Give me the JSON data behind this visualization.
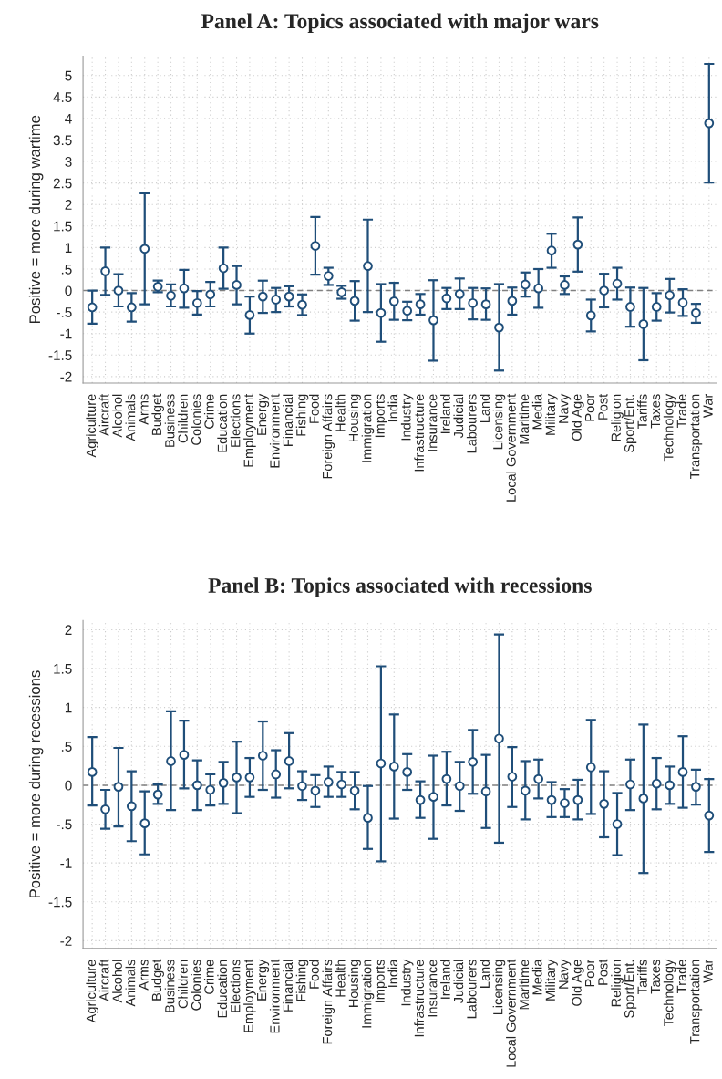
{
  "chart_data": [
    {
      "type": "scatter",
      "title": "Panel A: Topics associated with major wars",
      "ylabel": "Positive = more during wartime",
      "categories": [
        "Agriculture",
        "Aircraft",
        "Alcohol",
        "Animals",
        "Arms",
        "Budget",
        "Business",
        "Children",
        "Colonies",
        "Crime",
        "Education",
        "Elections",
        "Employment",
        "Energy",
        "Environment",
        "Financial",
        "Fishing",
        "Food",
        "Foreign Affairs",
        "Health",
        "Housing",
        "Immigration",
        "Imports",
        "India",
        "Industry",
        "Infrastructure",
        "Insurance",
        "Ireland",
        "Judicial",
        "Labourers",
        "Land",
        "Licensing",
        "Local Government",
        "Maritime",
        "Media",
        "Military",
        "Navy",
        "Old Age",
        "Poor",
        "Post",
        "Religion",
        "Sport/Ent.",
        "Tariffs",
        "Taxes",
        "Technology",
        "Trade",
        "Transportation",
        "War"
      ],
      "series": [
        {
          "color": "#1f4e79",
          "values": [
            -0.39,
            0.45,
            0.0,
            -0.39,
            0.97,
            0.09,
            -0.12,
            0.05,
            -0.29,
            -0.09,
            0.52,
            0.13,
            -0.57,
            -0.14,
            -0.21,
            -0.14,
            -0.33,
            1.04,
            0.34,
            -0.04,
            -0.24,
            0.57,
            -0.52,
            -0.25,
            -0.47,
            -0.32,
            -0.69,
            -0.18,
            -0.08,
            -0.29,
            -0.32,
            -0.86,
            -0.24,
            0.14,
            0.05,
            0.93,
            0.13,
            1.07,
            -0.58,
            0.0,
            0.16,
            -0.38,
            -0.78,
            -0.38,
            -0.11,
            -0.28,
            -0.52,
            3.89
          ],
          "errors": [
            [
              -0.77,
              0.0
            ],
            [
              -0.1,
              1.0
            ],
            [
              -0.37,
              0.38
            ],
            [
              -0.72,
              -0.06
            ],
            [
              -0.32,
              2.26
            ],
            [
              -0.04,
              0.23
            ],
            [
              -0.37,
              0.14
            ],
            [
              -0.4,
              0.48
            ],
            [
              -0.56,
              -0.01
            ],
            [
              -0.37,
              0.2
            ],
            [
              0.04,
              1.0
            ],
            [
              -0.32,
              0.57
            ],
            [
              -1.0,
              -0.14
            ],
            [
              -0.52,
              0.23
            ],
            [
              -0.5,
              0.06
            ],
            [
              -0.37,
              0.1
            ],
            [
              -0.57,
              -0.09
            ],
            [
              0.37,
              1.71
            ],
            [
              0.13,
              0.53
            ],
            [
              -0.19,
              0.11
            ],
            [
              -0.7,
              0.22
            ],
            [
              -0.5,
              1.65
            ],
            [
              -1.19,
              0.15
            ],
            [
              -0.68,
              0.18
            ],
            [
              -0.69,
              -0.26
            ],
            [
              -0.56,
              -0.08
            ],
            [
              -1.63,
              0.24
            ],
            [
              -0.43,
              0.06
            ],
            [
              -0.43,
              0.28
            ],
            [
              -0.67,
              0.06
            ],
            [
              -0.68,
              0.05
            ],
            [
              -1.86,
              0.15
            ],
            [
              -0.56,
              0.07
            ],
            [
              -0.14,
              0.42
            ],
            [
              -0.4,
              0.5
            ],
            [
              0.53,
              1.32
            ],
            [
              -0.08,
              0.33
            ],
            [
              0.44,
              1.7
            ],
            [
              -0.95,
              -0.21
            ],
            [
              -0.39,
              0.39
            ],
            [
              -0.21,
              0.53
            ],
            [
              -0.84,
              0.07
            ],
            [
              -1.62,
              0.06
            ],
            [
              -0.7,
              -0.06
            ],
            [
              -0.51,
              0.27
            ],
            [
              -0.59,
              0.03
            ],
            [
              -0.75,
              -0.31
            ],
            [
              2.51,
              5.27
            ]
          ]
        }
      ],
      "ylim": [
        -2.15,
        5.45
      ],
      "yticks": [
        5,
        {
          "value": 4.5,
          "label": "4.5"
        },
        4,
        {
          "value": 3.5,
          "label": "3.5"
        },
        3,
        {
          "value": 2.5,
          "label": "2.5"
        },
        2,
        {
          "value": 1.5,
          "label": "1.5"
        },
        1,
        {
          "value": 0.5,
          "label": ".5"
        },
        0,
        {
          "value": -0.5,
          "label": "-.5"
        },
        -1,
        {
          "value": -1.5,
          "label": "-1.5"
        },
        -2
      ],
      "ref_lines": [
        {
          "axis": "y",
          "value": 0,
          "color": "#808080",
          "line_style": "dashed"
        }
      ],
      "grid": true,
      "marker": "circle",
      "legend": false
    },
    {
      "type": "scatter",
      "title": "Panel B: Topics associated with recessions",
      "ylabel": "Positive = more during recessions",
      "categories": [
        "Agriculture",
        "Aircraft",
        "Alcohol",
        "Animals",
        "Arms",
        "Budget",
        "Business",
        "Children",
        "Colonies",
        "Crime",
        "Education",
        "Elections",
        "Employment",
        "Energy",
        "Environment",
        "Financial",
        "Fishing",
        "Food",
        "Foreign Affairs",
        "Health",
        "Housing",
        "Immigration",
        "Imports",
        "India",
        "Industry",
        "Infrastructure",
        "Insurance",
        "Ireland",
        "Judicial",
        "Labourers",
        "Land",
        "Licensing",
        "Local Government",
        "Maritime",
        "Media",
        "Military",
        "Navy",
        "Old Age",
        "Poor",
        "Post",
        "Religion",
        "Sport/Ent.",
        "Tariffs",
        "Taxes",
        "Technology",
        "Trade",
        "Transportation",
        "War"
      ],
      "series": [
        {
          "color": "#1f4e79",
          "values": [
            0.17,
            -0.31,
            -0.02,
            -0.27,
            -0.49,
            -0.12,
            0.31,
            0.39,
            0.0,
            -0.06,
            0.03,
            0.1,
            0.1,
            0.38,
            0.14,
            0.31,
            -0.01,
            -0.07,
            0.04,
            0.01,
            -0.07,
            -0.42,
            0.28,
            0.24,
            0.17,
            -0.19,
            -0.15,
            0.08,
            -0.01,
            0.3,
            -0.08,
            0.6,
            0.11,
            -0.07,
            0.08,
            -0.19,
            -0.23,
            -0.19,
            0.23,
            -0.24,
            -0.5,
            0.01,
            -0.17,
            0.02,
            0.0,
            0.17,
            -0.02,
            -0.39
          ],
          "errors": [
            [
              -0.26,
              0.62
            ],
            [
              -0.56,
              -0.06
            ],
            [
              -0.53,
              0.48
            ],
            [
              -0.72,
              0.18
            ],
            [
              -0.89,
              -0.08
            ],
            [
              -0.24,
              0.01
            ],
            [
              -0.32,
              0.95
            ],
            [
              -0.04,
              0.83
            ],
            [
              -0.32,
              0.32
            ],
            [
              -0.26,
              0.14
            ],
            [
              -0.24,
              0.3
            ],
            [
              -0.36,
              0.56
            ],
            [
              -0.15,
              0.35
            ],
            [
              -0.06,
              0.82
            ],
            [
              -0.16,
              0.45
            ],
            [
              -0.04,
              0.67
            ],
            [
              -0.19,
              0.18
            ],
            [
              -0.28,
              0.13
            ],
            [
              -0.15,
              0.24
            ],
            [
              -0.15,
              0.17
            ],
            [
              -0.31,
              0.17
            ],
            [
              -0.82,
              -0.01
            ],
            [
              -0.98,
              1.53
            ],
            [
              -0.43,
              0.91
            ],
            [
              -0.06,
              0.4
            ],
            [
              -0.42,
              0.05
            ],
            [
              -0.69,
              0.38
            ],
            [
              -0.26,
              0.43
            ],
            [
              -0.33,
              0.3
            ],
            [
              -0.11,
              0.71
            ],
            [
              -0.55,
              0.39
            ],
            [
              -0.74,
              1.94
            ],
            [
              -0.28,
              0.49
            ],
            [
              -0.44,
              0.31
            ],
            [
              -0.17,
              0.33
            ],
            [
              -0.41,
              0.04
            ],
            [
              -0.41,
              -0.05
            ],
            [
              -0.44,
              0.07
            ],
            [
              -0.37,
              0.84
            ],
            [
              -0.67,
              0.18
            ],
            [
              -0.9,
              -0.1
            ],
            [
              -0.32,
              0.33
            ],
            [
              -1.13,
              0.78
            ],
            [
              -0.31,
              0.35
            ],
            [
              -0.24,
              0.24
            ],
            [
              -0.29,
              0.63
            ],
            [
              -0.25,
              0.2
            ],
            [
              -0.86,
              0.08
            ]
          ]
        }
      ],
      "ylim": [
        -2.1,
        2.12
      ],
      "yticks": [
        2,
        {
          "value": 1.5,
          "label": "1.5"
        },
        1,
        {
          "value": 0.5,
          "label": ".5"
        },
        0,
        {
          "value": -0.5,
          "label": "-.5"
        },
        -1,
        {
          "value": -1.5,
          "label": "-1.5"
        },
        -2
      ],
      "ref_lines": [
        {
          "axis": "y",
          "value": 0,
          "color": "#808080",
          "line_style": "dashed"
        }
      ],
      "grid": true,
      "marker": "circle",
      "legend": false
    }
  ]
}
